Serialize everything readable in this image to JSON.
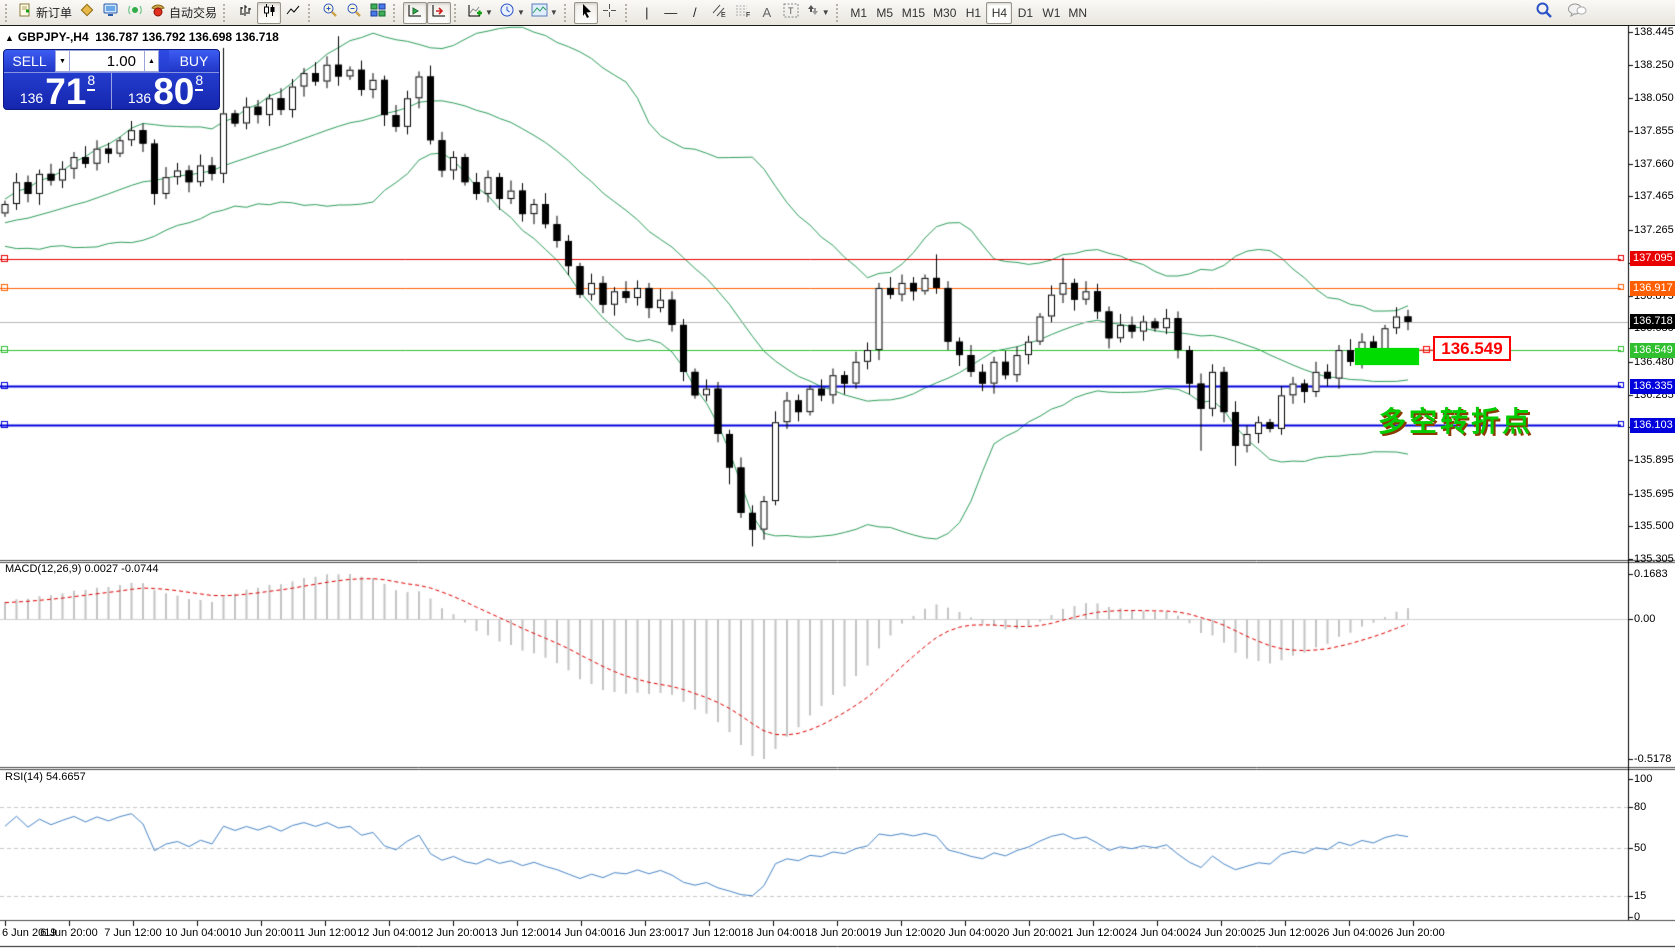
{
  "toolbar": {
    "new_order_label": "新订单",
    "autotrade_label": "自动交易",
    "text_tool": "A",
    "label_tool": "T",
    "timeframes": [
      {
        "label": "M1",
        "active": false
      },
      {
        "label": "M5",
        "active": false
      },
      {
        "label": "M15",
        "active": false
      },
      {
        "label": "M30",
        "active": false
      },
      {
        "label": "H1",
        "active": false
      },
      {
        "label": "H4",
        "active": true
      },
      {
        "label": "D1",
        "active": false
      },
      {
        "label": "W1",
        "active": false
      },
      {
        "label": "MN",
        "active": false
      }
    ]
  },
  "symbol_bar": {
    "collapse_icon": "▲",
    "symbol": "GBPJPY-,H4",
    "quotes": "136.787 136.792 136.698 136.718"
  },
  "trade_panel": {
    "sell_label": "SELL",
    "buy_label": "BUY",
    "volume": "1.00",
    "sell": {
      "prefix": "136",
      "big": "71",
      "sup": "8"
    },
    "buy": {
      "prefix": "136",
      "big": "80",
      "sup": "8"
    }
  },
  "chart_data": {
    "type": "candlestick",
    "symbol": "GBPJPY-",
    "timeframe": "H4",
    "y_axis": {
      "ticks": [
        "138.445",
        "138.250",
        "138.050",
        "137.855",
        "137.660",
        "137.465",
        "137.265",
        "137.070",
        "136.875",
        "136.680",
        "136.480",
        "136.285",
        "136.090",
        "135.895",
        "135.695",
        "135.500",
        "135.305"
      ]
    },
    "x_axis": {
      "ticks": [
        "6 Jun 2019",
        "6 Jun 20:00",
        "7 Jun 12:00",
        "10 Jun 04:00",
        "10 Jun 20:00",
        "11 Jun 12:00",
        "12 Jun 04:00",
        "12 Jun 20:00",
        "13 Jun 12:00",
        "14 Jun 04:00",
        "16 Jun 23:00",
        "17 Jun 12:00",
        "18 Jun 04:00",
        "18 Jun 20:00",
        "19 Jun 12:00",
        "20 Jun 04:00",
        "20 Jun 20:00",
        "21 Jun 12:00",
        "24 Jun 04:00",
        "24 Jun 20:00",
        "25 Jun 12:00",
        "26 Jun 04:00",
        "26 Jun 20:00"
      ]
    },
    "closes": [
      137.42,
      137.55,
      137.48,
      137.6,
      137.56,
      137.63,
      137.7,
      137.66,
      137.75,
      137.72,
      137.8,
      137.86,
      137.78,
      137.48,
      137.58,
      137.62,
      137.55,
      137.65,
      137.6,
      137.96,
      137.9,
      138.0,
      137.95,
      138.05,
      137.98,
      138.12,
      138.2,
      138.15,
      138.25,
      138.18,
      138.22,
      138.1,
      138.16,
      137.95,
      137.88,
      138.05,
      138.18,
      137.8,
      137.62,
      137.7,
      137.55,
      137.48,
      137.58,
      137.45,
      137.5,
      137.36,
      137.42,
      137.3,
      137.2,
      137.05,
      136.88,
      136.95,
      136.82,
      136.9,
      136.86,
      136.92,
      136.8,
      136.85,
      136.7,
      136.42,
      136.28,
      136.32,
      136.05,
      135.85,
      135.58,
      135.48,
      135.65,
      136.12,
      136.25,
      136.18,
      136.32,
      136.28,
      136.4,
      136.35,
      136.48,
      136.55,
      136.92,
      136.88,
      136.95,
      136.9,
      136.98,
      136.92,
      136.6,
      136.52,
      136.42,
      136.35,
      136.48,
      136.4,
      136.52,
      136.6,
      136.75,
      136.88,
      136.95,
      136.85,
      136.9,
      136.78,
      136.62,
      136.7,
      136.66,
      136.72,
      136.68,
      136.74,
      136.55,
      136.35,
      136.2,
      136.42,
      136.18,
      135.98,
      136.05,
      136.12,
      136.08,
      136.28,
      136.35,
      136.3,
      136.42,
      136.38,
      136.55,
      136.48,
      136.6,
      136.55,
      136.68,
      136.75,
      136.718
    ],
    "wick_overrides": {
      "19": {
        "high": 138.35
      },
      "29": {
        "high": 138.42
      },
      "63": {
        "low": 135.75
      },
      "65": {
        "low": 135.38
      },
      "81": {
        "high": 137.12
      },
      "92": {
        "high": 137.1
      },
      "104": {
        "low": 135.95
      },
      "107": {
        "low": 135.86
      }
    },
    "bollinger": {
      "period": 20,
      "deviation": 2,
      "color": "#2e9e5b"
    },
    "last_price": 136.718,
    "price_badge": {
      "label": "136.718",
      "bg": "#000000",
      "line_color": "#b8b8b8"
    },
    "levels": [
      {
        "price": 137.095,
        "label": "137.095",
        "color": "#e80000",
        "width": 1
      },
      {
        "price": 136.917,
        "label": "136.917",
        "color": "#ff5f00",
        "width": 1
      },
      {
        "price": 136.549,
        "label": "136.549",
        "color": "#2fbf2f",
        "width": 1
      },
      {
        "price": 136.335,
        "label": "136.335",
        "color": "#0000dd",
        "width": 2
      },
      {
        "price": 136.103,
        "label": "136.103",
        "color": "#0000dd",
        "width": 2
      }
    ],
    "macd": {
      "name": "MACD(12,26,9)",
      "values": "0.0027 -0.0744",
      "axis_ticks": [
        "0.1683",
        "0.00",
        "-0.5178"
      ],
      "axis_max": 0.1683,
      "axis_min": -0.5178,
      "histogram_color": "#c4c4c4",
      "signal_color": "#e00000"
    },
    "rsi": {
      "name": "RSI(14)",
      "value": "54.6657",
      "axis_ticks": [
        "100",
        "80",
        "50",
        "15",
        "0"
      ],
      "level_lines": [
        80,
        50,
        15
      ],
      "color": "#4a86c8"
    },
    "annotations": {
      "highlight_box": {
        "color": "#00dc00"
      },
      "price_callout": {
        "label": "136.549",
        "color": "#ff0000"
      },
      "note_text": {
        "label": "多空转折点",
        "color": "#00cc00"
      }
    }
  }
}
